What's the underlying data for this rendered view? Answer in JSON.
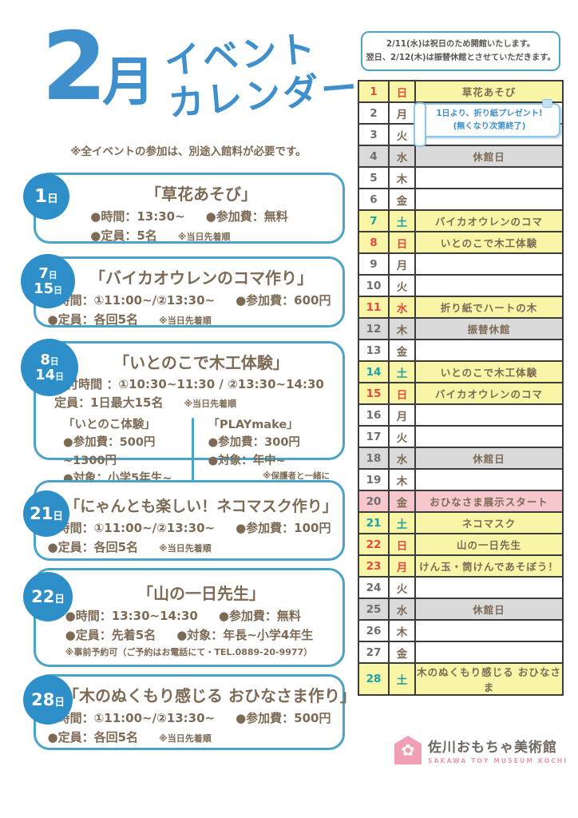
{
  "title": {
    "month_num": "2",
    "month_kanji": "月",
    "line1": "イベント",
    "line2": "カレンダー"
  },
  "note": "※全イベントの参加は、別途入館料が必要です。",
  "events": [
    {
      "dates": [
        "1日"
      ],
      "title": "「草花あそび」",
      "line1a": "●時間：13:30~",
      "line1b": "●参加費：無料",
      "line2": "●定員：5名",
      "line2_small": "※当日先着順"
    },
    {
      "dates": [
        "7日",
        "15日"
      ],
      "title": "「バイカオウレンのコマ作り」",
      "line1a": "●時間：①11:00~/②13:30~",
      "line1b": "●参加費：600円",
      "line2": "●定員：各回5名",
      "line2_small": "※当日先着順"
    },
    {
      "dates": [
        "8日",
        "14日"
      ],
      "title": "「いとのこで木工体験」",
      "line1": "受付時間 ：①10:30~11:30 / ②13:30~14:30",
      "line2": "定員：1日最大15名",
      "line2_small": "※当日先着順",
      "col1_title": "「いとのこ体験」",
      "col1_line1": "●参加費：500円~1300円",
      "col1_line2": "●対象：小学5年生~",
      "col2_title": "「PLAYmake」",
      "col2_line1": "●参加費：300円",
      "col2_line2": "●対象：年中~",
      "col2_note": "※保護者と一緒に"
    },
    {
      "dates": [
        "21日"
      ],
      "title": "「にゃんとも楽しい！ネコマスク作り」",
      "line1a": "●時間：①11:00~/②13:30~",
      "line1b": "●参加費：100円",
      "line2": "●定員：各回5名",
      "line2_small": "※当日先着順"
    },
    {
      "dates": [
        "22日"
      ],
      "title": "「山の一日先生」",
      "line1a": "●時間：13:30~14:30",
      "line1b": "●参加費：無料",
      "line2a": "●定員：先着5名",
      "line2b": "●対象：年長~小学4年生",
      "line3": "※事前予約可（ご予約はお電話にて・TEL.0889-20-9977）"
    },
    {
      "dates": [
        "28日"
      ],
      "title": "「木のぬくもり感じる おひなさま作り」",
      "line1a": "●時間：①11:00~/②13:30~",
      "line1b": "●参加費：500円",
      "line2": "●定員：各回5名",
      "line2_small": "※当日先着順"
    }
  ],
  "notice": {
    "line1": "2/11(水)は祝日のため開館いたします。",
    "line2": "翌日、2/12(木)は振替休館とさせていただきます。"
  },
  "banner": {
    "line1": "1日より、折り紙プレゼント!",
    "line2": "(無くなり次第終了)"
  },
  "calendar": {
    "rows": [
      {
        "date": "1",
        "day": "日",
        "event": "草花あそび",
        "bg": "yellow",
        "accent": "red"
      },
      {
        "date": "2",
        "day": "月",
        "event": "",
        "bg": "white",
        "accent": ""
      },
      {
        "date": "3",
        "day": "火",
        "event": "",
        "bg": "white",
        "accent": ""
      },
      {
        "date": "4",
        "day": "水",
        "event": "休館日",
        "bg": "gray",
        "accent": ""
      },
      {
        "date": "5",
        "day": "木",
        "event": "",
        "bg": "white",
        "accent": ""
      },
      {
        "date": "6",
        "day": "金",
        "event": "",
        "bg": "white",
        "accent": ""
      },
      {
        "date": "7",
        "day": "土",
        "event": "バイカオウレンのコマ",
        "bg": "yellow",
        "accent": "teal"
      },
      {
        "date": "8",
        "day": "日",
        "event": "いとのこで木工体験",
        "bg": "yellow",
        "accent": "red"
      },
      {
        "date": "9",
        "day": "月",
        "event": "",
        "bg": "white",
        "accent": ""
      },
      {
        "date": "10",
        "day": "火",
        "event": "",
        "bg": "white",
        "accent": ""
      },
      {
        "date": "11",
        "day": "水",
        "event": "折り紙でハートの木",
        "bg": "yellow",
        "accent": "red"
      },
      {
        "date": "12",
        "day": "木",
        "event": "振替休館",
        "bg": "gray",
        "accent": ""
      },
      {
        "date": "13",
        "day": "金",
        "event": "",
        "bg": "white",
        "accent": ""
      },
      {
        "date": "14",
        "day": "土",
        "event": "いとのこで木工体験",
        "bg": "yellow",
        "accent": "teal"
      },
      {
        "date": "15",
        "day": "日",
        "event": "バイカオウレンのコマ",
        "bg": "yellow",
        "accent": "red"
      },
      {
        "date": "16",
        "day": "月",
        "event": "",
        "bg": "white",
        "accent": ""
      },
      {
        "date": "17",
        "day": "火",
        "event": "",
        "bg": "white",
        "accent": ""
      },
      {
        "date": "18",
        "day": "水",
        "event": "休館日",
        "bg": "gray",
        "accent": ""
      },
      {
        "date": "19",
        "day": "木",
        "event": "",
        "bg": "white",
        "accent": ""
      },
      {
        "date": "20",
        "day": "金",
        "event": "おひなさま展示スタート",
        "bg": "pink",
        "accent": ""
      },
      {
        "date": "21",
        "day": "土",
        "event": "ネコマスク",
        "bg": "yellow",
        "accent": "teal"
      },
      {
        "date": "22",
        "day": "日",
        "event": "山の一日先生",
        "bg": "yellow",
        "accent": "red"
      },
      {
        "date": "23",
        "day": "月",
        "event": "けん玉・筒けんであそぼう！",
        "bg": "yellow",
        "accent": "red"
      },
      {
        "date": "24",
        "day": "火",
        "event": "",
        "bg": "white",
        "accent": ""
      },
      {
        "date": "25",
        "day": "水",
        "event": "休館日",
        "bg": "gray",
        "accent": ""
      },
      {
        "date": "26",
        "day": "木",
        "event": "",
        "bg": "white",
        "accent": ""
      },
      {
        "date": "27",
        "day": "金",
        "event": "",
        "bg": "white",
        "accent": ""
      },
      {
        "date": "28",
        "day": "土",
        "event": "木のぬくもり感じる おひなさま",
        "bg": "yellow",
        "accent": "teal"
      }
    ]
  },
  "logo": {
    "name": "佐川おもちゃ美術館",
    "sub": "SAKAWA TOY MUSEUM KOCHI"
  },
  "colors": {
    "title_blue": "#3E8FCC",
    "card_border": "#4BA3C6",
    "badge_blue": "#2E8FC8",
    "text_brown": "#7C6A55",
    "red": "#E8473F",
    "teal": "#1AA0A8",
    "yellow_bg": "#F8F5A6",
    "gray_bg": "#DADADA",
    "pink_bg": "#F7C7CE",
    "logo_pink": "#F0A0B4"
  }
}
